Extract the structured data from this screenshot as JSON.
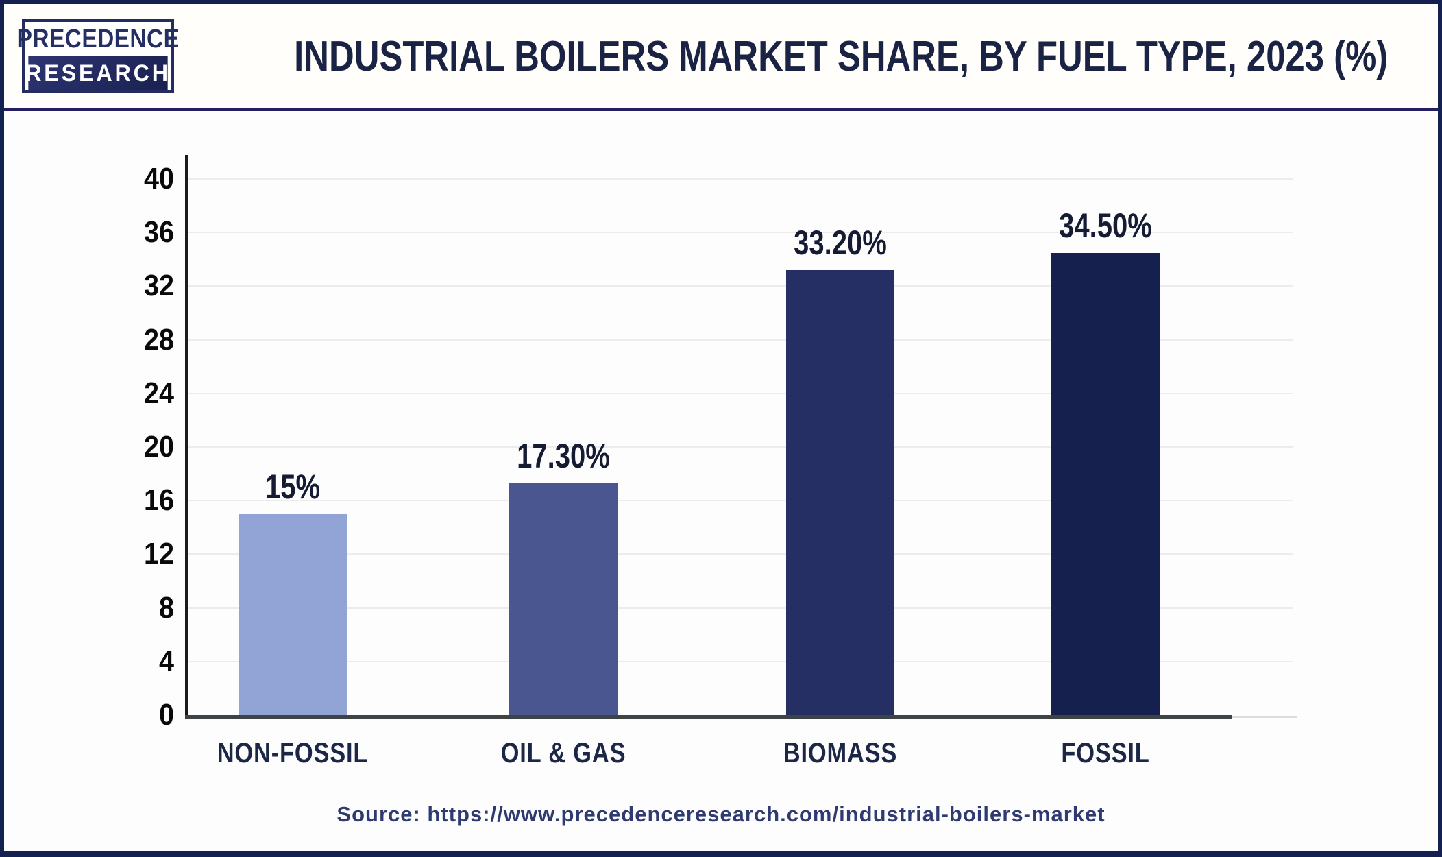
{
  "brand": {
    "line1": "PRECEDENCE",
    "line2": "RESEARCH"
  },
  "header": {
    "title": "INDUSTRIAL BOILERS MARKET SHARE, BY FUEL TYPE, 2023 (%)"
  },
  "chart_data": {
    "type": "bar",
    "title": "Industrial Boilers Market Share, By Fuel Type, 2023 (%)",
    "categories": [
      "NON-FOSSIL",
      "OIL & GAS",
      "BIOMASS",
      "FOSSIL"
    ],
    "values": [
      15,
      17.3,
      33.2,
      34.5
    ],
    "value_labels": [
      "15%",
      "17.30%",
      "33.20%",
      "34.50%"
    ],
    "bar_colors": [
      "#92A3D6",
      "#4A5690",
      "#262F63",
      "#15204E"
    ],
    "xlabel": "",
    "ylabel": "",
    "ylim": [
      0,
      40
    ],
    "ytick_step": 4,
    "yticks": [
      0,
      4,
      8,
      12,
      16,
      20,
      24,
      28,
      32,
      36,
      40
    ],
    "grid": true,
    "legend": "none"
  },
  "footer": {
    "source": "Source: https://www.precedenceresearch.com/industrial-boilers-market"
  },
  "colors": {
    "frame_border": "#132050",
    "separator": "#241e63",
    "brand_navy": "#232d60",
    "title_text": "#1b2344",
    "axis_line": "#3e4345",
    "gridline": "#ececec",
    "source_text": "#2e3a70"
  }
}
